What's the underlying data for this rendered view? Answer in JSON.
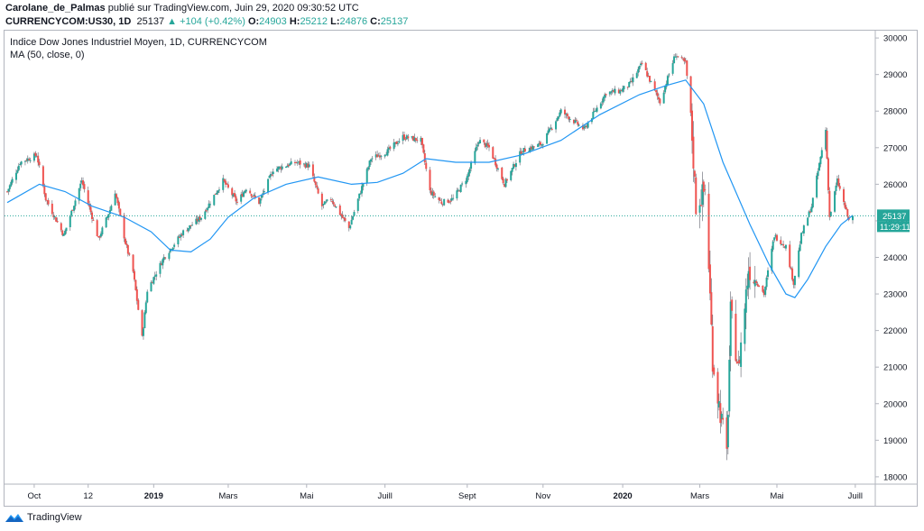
{
  "header": {
    "author": "Carolane_de_Palmas",
    "published": " publié sur TradingView.com, Juin 29, 2020 09:30:52 UTC",
    "symbol": "CURRENCYCOM:US30, 1D",
    "last": "25137",
    "change": "+104 (+0.42%)",
    "o_label": "O:",
    "o_value": "24903",
    "h_label": "H:",
    "h_value": "25212",
    "l_label": "L:",
    "l_value": "24876",
    "c_label": "C:",
    "c_value": "25137"
  },
  "legend": {
    "title": "Indice Dow Jones Industriel Moyen, 1D, CURRENCYCOM",
    "indicator": "MA (50, close, 0)"
  },
  "price_label": "25137",
  "countdown_label": "11:29:11",
  "footer": {
    "brand": "TradingView",
    "logo_icon": "tradingview-logo-icon"
  },
  "colors": {
    "up": "#26a69a",
    "down": "#ef5350",
    "ma": "#2196f3",
    "price_line": "#26a69a"
  },
  "chart_data": {
    "type": "candlestick",
    "title": "Indice Dow Jones Industriel Moyen, 1D, CURRENCYCOM",
    "indicator": "MA (50, close, 0)",
    "ylim": [
      17800,
      30200
    ],
    "y_ticks": [
      18000,
      19000,
      20000,
      21000,
      22000,
      23000,
      24000,
      25000,
      26000,
      27000,
      28000,
      29000,
      30000
    ],
    "x_ticks": [
      {
        "label": "Oct",
        "date": "2018-10-01"
      },
      {
        "label": "12",
        "date": "2018-11-12"
      },
      {
        "label": "2019",
        "date": "2019-01-02"
      },
      {
        "label": "Mars",
        "date": "2019-03-01"
      },
      {
        "label": "Mai",
        "date": "2019-05-01"
      },
      {
        "label": "Juill",
        "date": "2019-07-01"
      },
      {
        "label": "Sept",
        "date": "2019-09-03"
      },
      {
        "label": "Nov",
        "date": "2019-11-01"
      },
      {
        "label": "2020",
        "date": "2020-01-02"
      },
      {
        "label": "Mars",
        "date": "2020-03-02"
      },
      {
        "label": "Mai",
        "date": "2020-05-01"
      },
      {
        "label": "Juill",
        "date": "2020-07-01"
      }
    ],
    "date_range": [
      "2018-09-10",
      "2020-06-29"
    ],
    "current_price": 25137,
    "close_path": [
      [
        "2018-09-10",
        25800
      ],
      [
        "2018-09-20",
        26600
      ],
      [
        "2018-10-03",
        26800
      ],
      [
        "2018-10-10",
        25600
      ],
      [
        "2018-10-24",
        24600
      ],
      [
        "2018-11-07",
        26100
      ],
      [
        "2018-11-20",
        24500
      ],
      [
        "2018-11-29",
        25300
      ],
      [
        "2018-12-03",
        25800
      ],
      [
        "2018-12-11",
        24400
      ],
      [
        "2018-12-17",
        23600
      ],
      [
        "2018-12-24",
        21800
      ],
      [
        "2018-12-28",
        23100
      ],
      [
        "2019-01-10",
        24000
      ],
      [
        "2019-01-25",
        24700
      ],
      [
        "2019-02-08",
        25100
      ],
      [
        "2019-02-25",
        26100
      ],
      [
        "2019-03-08",
        25500
      ],
      [
        "2019-03-15",
        25900
      ],
      [
        "2019-03-25",
        25500
      ],
      [
        "2019-04-05",
        26400
      ],
      [
        "2019-04-23",
        26600
      ],
      [
        "2019-05-03",
        26500
      ],
      [
        "2019-05-13",
        25400
      ],
      [
        "2019-05-20",
        25600
      ],
      [
        "2019-06-03",
        24800
      ],
      [
        "2019-06-20",
        26700
      ],
      [
        "2019-07-03",
        26900
      ],
      [
        "2019-07-15",
        27300
      ],
      [
        "2019-07-29",
        27200
      ],
      [
        "2019-08-05",
        25800
      ],
      [
        "2019-08-14",
        25500
      ],
      [
        "2019-08-23",
        25600
      ],
      [
        "2019-09-03",
        26200
      ],
      [
        "2019-09-12",
        27200
      ],
      [
        "2019-09-20",
        27000
      ],
      [
        "2019-10-02",
        26000
      ],
      [
        "2019-10-15",
        26900
      ],
      [
        "2019-10-31",
        27100
      ],
      [
        "2019-11-15",
        28000
      ],
      [
        "2019-12-03",
        27500
      ],
      [
        "2019-12-20",
        28500
      ],
      [
        "2019-12-31",
        28550
      ],
      [
        "2020-01-08",
        28750
      ],
      [
        "2020-01-17",
        29300
      ],
      [
        "2020-01-31",
        28250
      ],
      [
        "2020-02-12",
        29550
      ],
      [
        "2020-02-20",
        29300
      ],
      [
        "2020-02-24",
        27900
      ],
      [
        "2020-02-28",
        25400
      ],
      [
        "2020-03-06",
        25850
      ],
      [
        "2020-03-09",
        23800
      ],
      [
        "2020-03-12",
        21200
      ],
      [
        "2020-03-16",
        20200
      ],
      [
        "2020-03-23",
        18600
      ],
      [
        "2020-03-26",
        22500
      ],
      [
        "2020-04-01",
        20950
      ],
      [
        "2020-04-09",
        23700
      ],
      [
        "2020-04-21",
        23000
      ],
      [
        "2020-04-29",
        24600
      ],
      [
        "2020-05-08",
        24300
      ],
      [
        "2020-05-14",
        23300
      ],
      [
        "2020-05-20",
        24600
      ],
      [
        "2020-05-28",
        25400
      ],
      [
        "2020-06-08",
        27500
      ],
      [
        "2020-06-11",
        25100
      ],
      [
        "2020-06-17",
        26100
      ],
      [
        "2020-06-26",
        25000
      ],
      [
        "2020-06-29",
        25137
      ]
    ],
    "ma_path": [
      [
        "2018-09-10",
        25500
      ],
      [
        "2018-10-05",
        26000
      ],
      [
        "2018-10-25",
        25800
      ],
      [
        "2018-11-15",
        25400
      ],
      [
        "2018-12-10",
        25100
      ],
      [
        "2018-12-31",
        24700
      ],
      [
        "2019-01-15",
        24200
      ],
      [
        "2019-01-31",
        24150
      ],
      [
        "2019-02-15",
        24500
      ],
      [
        "2019-03-01",
        25100
      ],
      [
        "2019-03-20",
        25600
      ],
      [
        "2019-04-15",
        26000
      ],
      [
        "2019-05-10",
        26200
      ],
      [
        "2019-06-05",
        26000
      ],
      [
        "2019-06-25",
        26050
      ],
      [
        "2019-07-15",
        26300
      ],
      [
        "2019-08-02",
        26700
      ],
      [
        "2019-08-25",
        26600
      ],
      [
        "2019-09-20",
        26600
      ],
      [
        "2019-10-15",
        26800
      ],
      [
        "2019-11-15",
        27200
      ],
      [
        "2019-12-15",
        27900
      ],
      [
        "2020-01-15",
        28450
      ],
      [
        "2020-02-05",
        28700
      ],
      [
        "2020-02-20",
        28850
      ],
      [
        "2020-03-05",
        28200
      ],
      [
        "2020-03-20",
        26600
      ],
      [
        "2020-04-10",
        24900
      ],
      [
        "2020-04-25",
        23800
      ],
      [
        "2020-05-08",
        23000
      ],
      [
        "2020-05-15",
        22900
      ],
      [
        "2020-05-25",
        23400
      ],
      [
        "2020-06-08",
        24300
      ],
      [
        "2020-06-20",
        24900
      ],
      [
        "2020-06-29",
        25150
      ]
    ]
  }
}
